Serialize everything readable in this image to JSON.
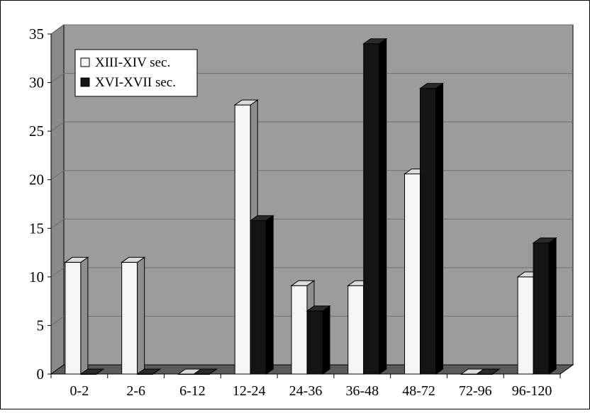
{
  "chart_data": {
    "type": "bar",
    "title": "",
    "xlabel": "",
    "ylabel": "",
    "categories": [
      "0-2",
      "2-6",
      "6-12",
      "12-24",
      "24-36",
      "36-48",
      "48-72",
      "72-96",
      "96-120"
    ],
    "series": [
      {
        "name": "XIII-XIV sec.",
        "values": [
          11.5,
          11.5,
          0,
          27.7,
          9.1,
          9.1,
          20.6,
          0,
          10
        ],
        "color": "#f5f5f5"
      },
      {
        "name": "XVI-XVII sec.",
        "values": [
          0,
          0,
          0,
          15.8,
          6.5,
          34,
          29.4,
          0,
          13.5
        ],
        "color": "#141414"
      }
    ],
    "yticks": [
      "0",
      "5",
      "10",
      "15",
      "20",
      "25",
      "30",
      "35"
    ],
    "ylim": [
      0,
      35
    ],
    "grid": true,
    "legend_position": "top-left",
    "style": "3d-clustered-columns",
    "colors": {
      "wall": "#9c9c9c",
      "floor": "#5a5a5a",
      "gridline": "#6e6e6e"
    }
  }
}
